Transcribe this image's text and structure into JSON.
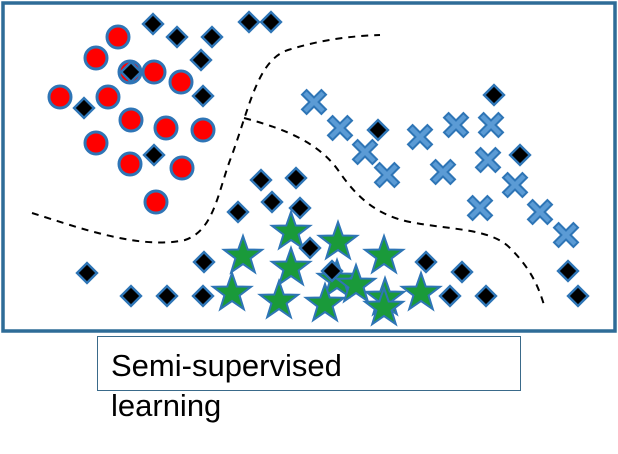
{
  "caption": "Semi-supervised learning",
  "colors": {
    "frame": "#2e6c97",
    "class_a_fill": "#ff0000",
    "class_b_fill": "#5b9bd5",
    "class_c_fill": "#1a9a3a",
    "unlabeled_fill": "#000000",
    "marker_outline": "#2e75b6",
    "boundary": "#000000"
  },
  "legend_shapes": {
    "class_a": "red-circle",
    "class_b": "blue-cross",
    "class_c": "green-star",
    "unlabeled": "black-diamond"
  }
}
